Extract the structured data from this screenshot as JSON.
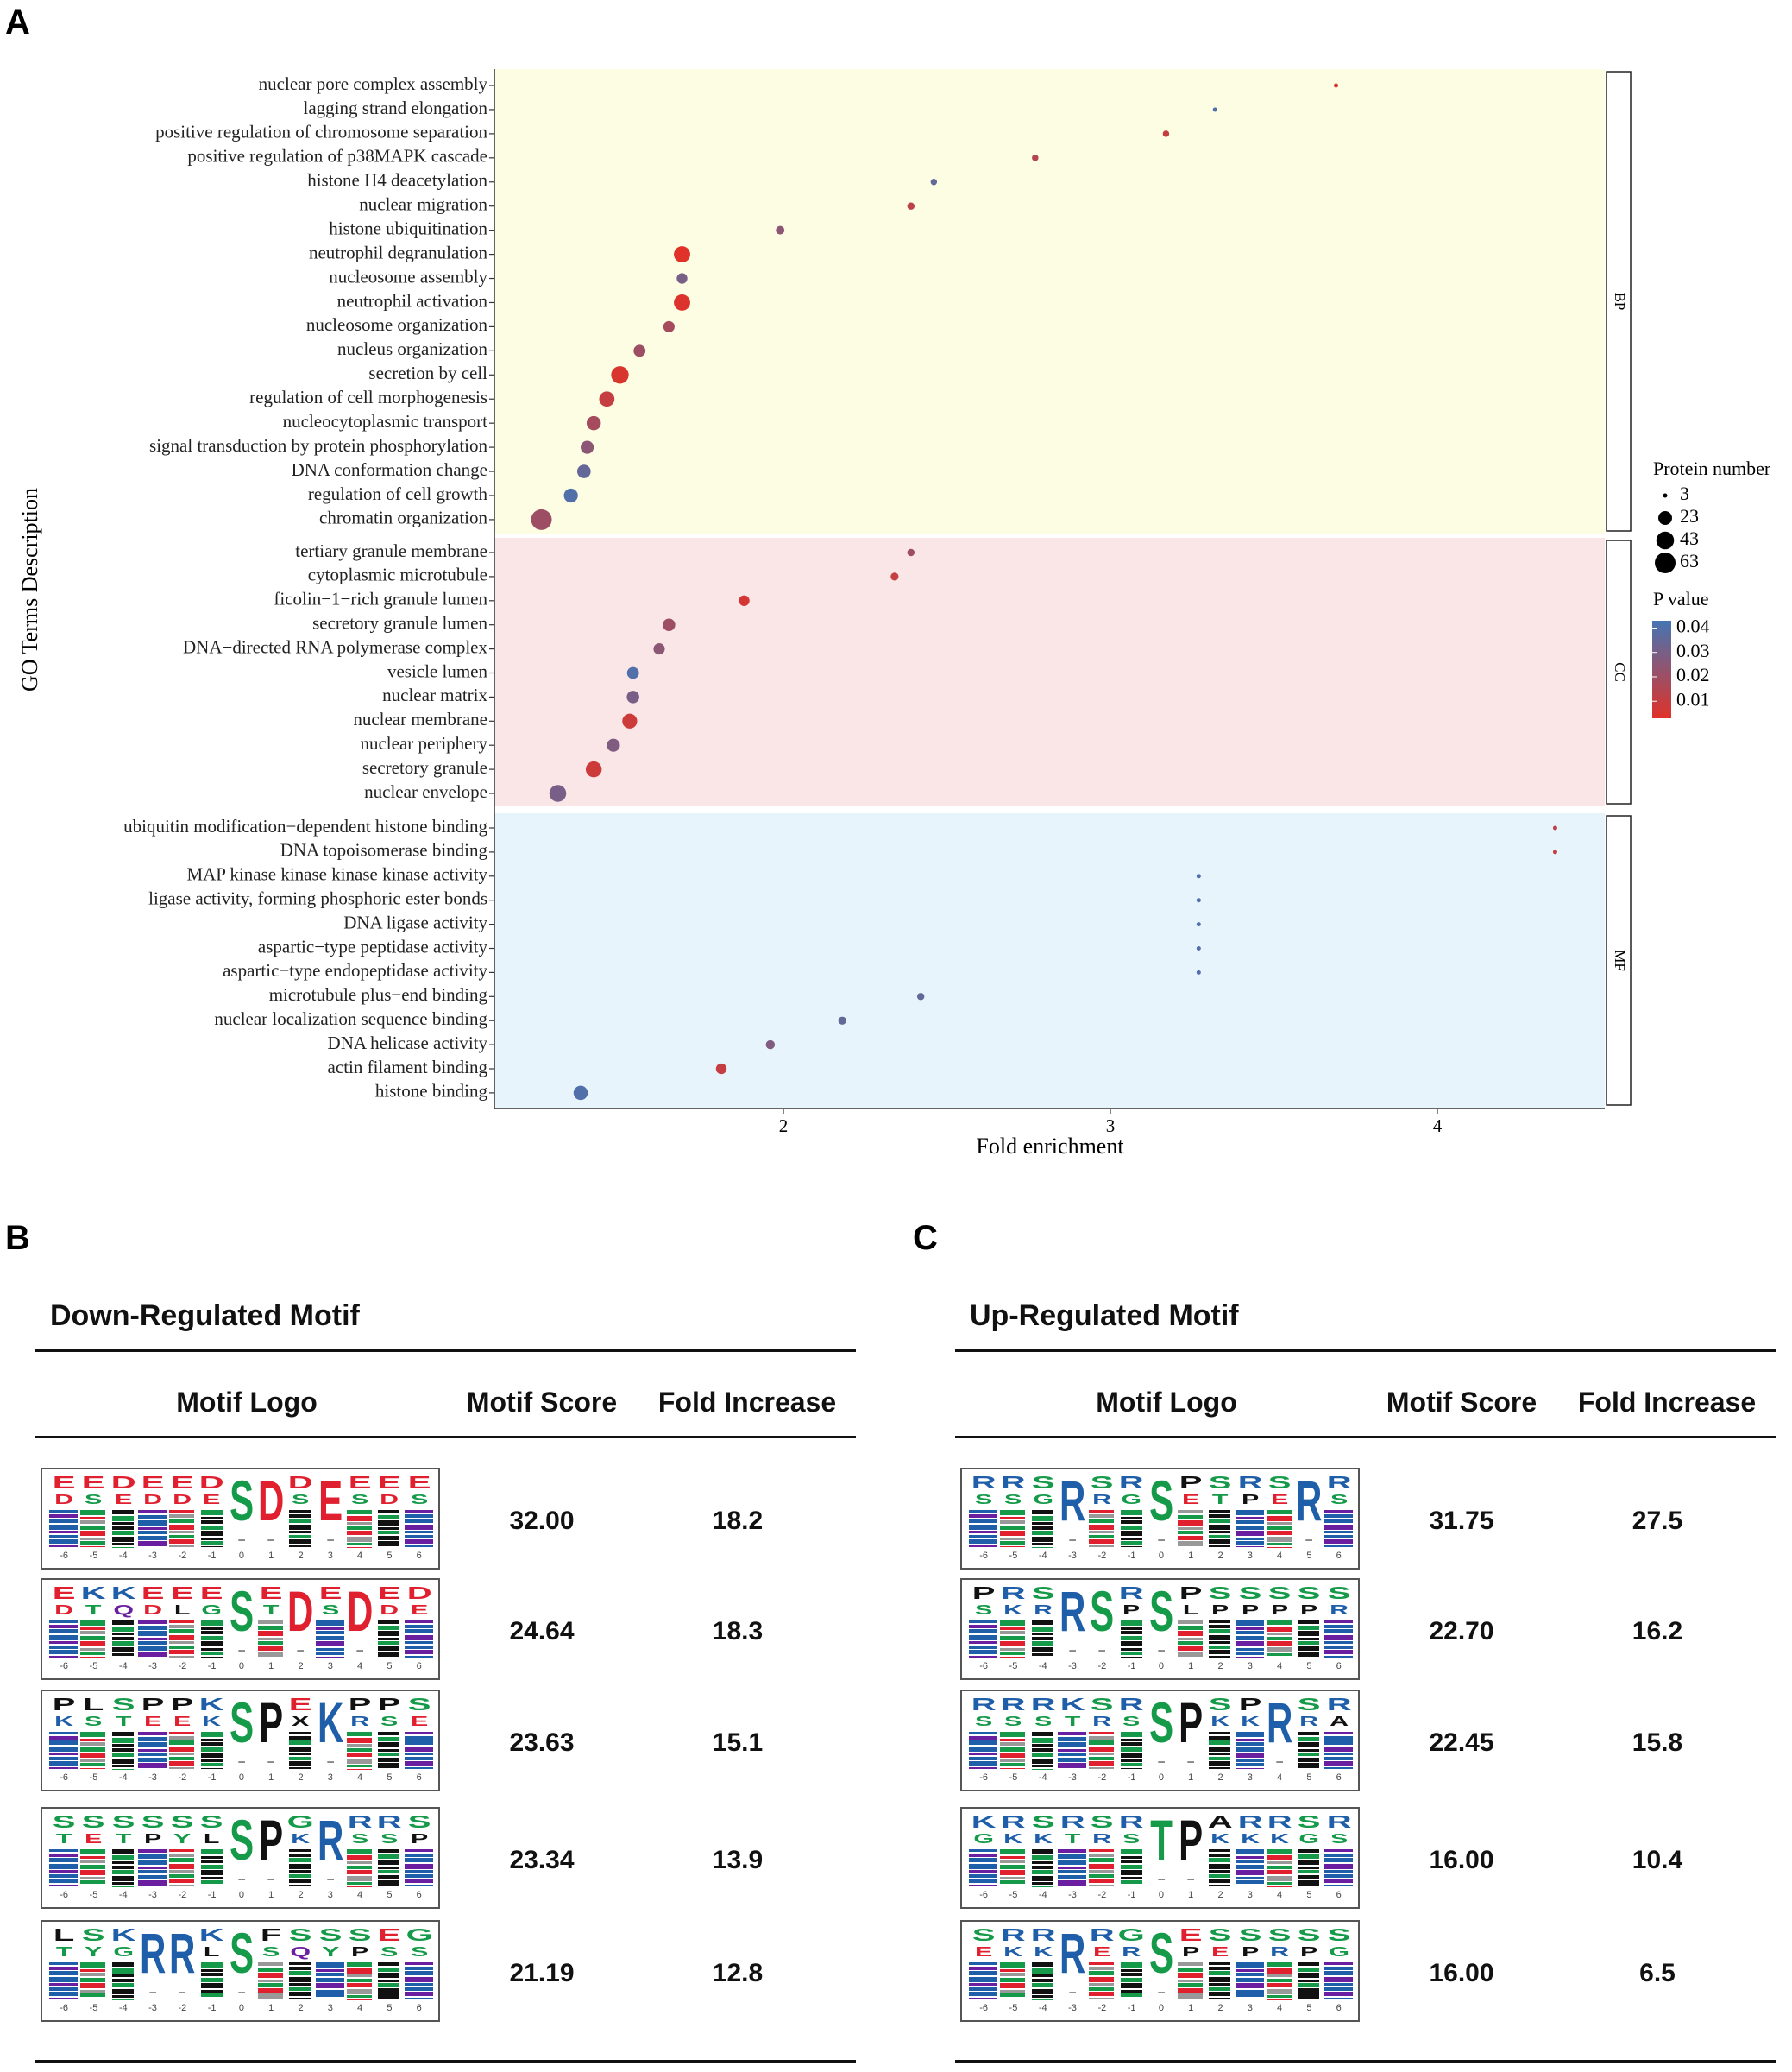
{
  "panels": {
    "a": "A",
    "b": "B",
    "c": "C"
  },
  "chart_data": {
    "type": "scatter",
    "title": "",
    "xlabel": "Fold enrichment",
    "ylabel": "GO Terms Description",
    "xlim": [
      1.116,
      4.51
    ],
    "xticks": [
      2,
      3,
      4
    ],
    "facet_colors": {
      "BP": "#fdfde4",
      "CC": "#fae5e7",
      "MF": "#e8f4fb"
    },
    "legend_size": {
      "title": "Protein number",
      "values": [
        3,
        23,
        43,
        63
      ]
    },
    "legend_color": {
      "title": "P value",
      "ticks": [
        "0.04",
        "0.03",
        "0.02",
        "0.01"
      ],
      "tick_values": [
        0.04,
        0.03,
        0.02,
        0.01
      ],
      "low_color": "#e03228",
      "high_color": "#4575b4",
      "range": [
        0.003,
        0.043
      ]
    },
    "facets": [
      {
        "name": "BP",
        "points": [
          [
            "nuclear pore complex assembly",
            3.69,
            3,
            0.005
          ],
          [
            "lagging strand elongation",
            3.32,
            3,
            0.04
          ],
          [
            "positive regulation of chromosome separation",
            3.17,
            4,
            0.01
          ],
          [
            "positive regulation of p38MAPK cascade",
            2.77,
            4,
            0.015
          ],
          [
            "histone H4 deacetylation",
            2.46,
            4,
            0.035
          ],
          [
            "nuclear migration",
            2.39,
            5,
            0.012
          ],
          [
            "histone ubiquitination",
            1.99,
            7,
            0.025
          ],
          [
            "neutrophil degranulation",
            1.69,
            35,
            0.003
          ],
          [
            "nucleosome assembly",
            1.69,
            12,
            0.03
          ],
          [
            "neutrophil activation",
            1.69,
            35,
            0.004
          ],
          [
            "nucleosome organization",
            1.65,
            14,
            0.018
          ],
          [
            "nucleus organization",
            1.56,
            16,
            0.02
          ],
          [
            "secretion by cell",
            1.5,
            42,
            0.005
          ],
          [
            "regulation of cell morphogenesis",
            1.46,
            30,
            0.01
          ],
          [
            "nucleocytoplasmic transport",
            1.42,
            25,
            0.018
          ],
          [
            "signal transduction by protein phosphorylation",
            1.4,
            20,
            0.025
          ],
          [
            "DNA conformation change",
            1.39,
            22,
            0.035
          ],
          [
            "regulation of cell growth",
            1.35,
            24,
            0.04
          ],
          [
            "chromatin organization",
            1.26,
            63,
            0.02
          ]
        ]
      },
      {
        "name": "CC",
        "points": [
          [
            "tertiary granule membrane",
            2.39,
            5,
            0.02
          ],
          [
            "cytoplasmic microtubule",
            2.34,
            6,
            0.01
          ],
          [
            "ficolin−1−rich granule lumen",
            1.88,
            12,
            0.006
          ],
          [
            "secretory granule lumen",
            1.65,
            18,
            0.02
          ],
          [
            "DNA−directed RNA polymerase complex",
            1.62,
            14,
            0.025
          ],
          [
            "vesicle lumen",
            1.54,
            16,
            0.04
          ],
          [
            "nuclear matrix",
            1.54,
            18,
            0.03
          ],
          [
            "nuclear membrane",
            1.53,
            28,
            0.008
          ],
          [
            "nuclear periphery",
            1.48,
            20,
            0.028
          ],
          [
            "secretory granule",
            1.42,
            33,
            0.008
          ],
          [
            "nuclear envelope",
            1.31,
            38,
            0.03
          ]
        ]
      },
      {
        "name": "MF",
        "points": [
          [
            "ubiquitin modification−dependent histone binding",
            4.36,
            3,
            0.012
          ],
          [
            "DNA topoisomerase binding",
            4.36,
            3,
            0.01
          ],
          [
            "MAP kinase kinase kinase kinase activity",
            3.27,
            3,
            0.04
          ],
          [
            "ligase activity, forming phosphoric ester bonds",
            3.27,
            3,
            0.04
          ],
          [
            "DNA ligase activity",
            3.27,
            3,
            0.04
          ],
          [
            "aspartic−type peptidase activity",
            3.27,
            3,
            0.04
          ],
          [
            "aspartic−type endopeptidase activity",
            3.27,
            3,
            0.04
          ],
          [
            "microtubule plus−end binding",
            2.42,
            5,
            0.035
          ],
          [
            "nuclear localization sequence binding",
            2.18,
            6,
            0.035
          ],
          [
            "DNA helicase activity",
            1.96,
            8,
            0.028
          ],
          [
            "actin filament binding",
            1.81,
            12,
            0.01
          ],
          [
            "histone binding",
            1.38,
            25,
            0.04
          ]
        ]
      }
    ]
  },
  "residue_colors": {
    "acidic": "#e0202f",
    "polar": "#149a48",
    "basic": "#1f5ea8",
    "hydrophobic": "#111111",
    "amide": "#6a1fa0"
  },
  "positions": [
    "-6",
    "-5",
    "-4",
    "-3",
    "-2",
    "-1",
    "0",
    "1",
    "2",
    "3",
    "4",
    "5",
    "6"
  ],
  "tables": {
    "down": {
      "title": "Down-Regulated Motif",
      "headers": {
        "logo": "Motif Logo",
        "score": "Motif Score",
        "fold": "Fold Increase"
      },
      "rows": [
        {
          "top": "EEDEEDSDDEEEE",
          "second": "DSEDDE--S-SDS",
          "full": [
            6,
            7,
            9
          ],
          "score": "32.00",
          "fold": "18.2"
        },
        {
          "top": "EKKEEESEDEDED",
          "second": "DTQDLG-T-S-DE",
          "full": [
            6,
            8,
            10
          ],
          "score": "24.64",
          "fold": "18.3"
        },
        {
          "top": "PLSPPKSPEKPPS",
          "second": "KSTEEK--X-RSE",
          "full": [
            6,
            7,
            9
          ],
          "score": "23.63",
          "fold": "15.1"
        },
        {
          "top": "SSSSSSSPGRRRS",
          "second": "TETPYL--K-SSP",
          "full": [
            6,
            7,
            9
          ],
          "score": "23.34",
          "fold": "13.9"
        },
        {
          "top": "LSKRRKSFSSSEG",
          "second": "TYG--L-SQYPSS",
          "full": [
            3,
            4,
            6
          ],
          "score": "21.19",
          "fold": "12.8"
        }
      ]
    },
    "up": {
      "title": "Up-Regulated Motif",
      "headers": {
        "logo": "Motif Logo",
        "score": "Motif Score",
        "fold": "Fold Increase"
      },
      "rows": [
        {
          "top": "RRSRSRSPSRSRR",
          "second": "SSG-RG-ETPE-S",
          "full": [
            3,
            6,
            11
          ],
          "score": "31.75",
          "fold": "27.5"
        },
        {
          "top": "PRSRSRSPSSSSS",
          "second": "SKR--P-LPPPPR",
          "full": [
            3,
            4,
            6
          ],
          "score": "22.70",
          "fold": "16.2"
        },
        {
          "top": "RRRKSRSPSPRSR",
          "second": "SSSTRS--KK-RA",
          "full": [
            6,
            7,
            10
          ],
          "score": "22.45",
          "fold": "15.8"
        },
        {
          "top": "KRSRSRTPARRSR",
          "second": "GKKTRS--KKKGS",
          "full": [
            6,
            7
          ],
          "score": "16.00",
          "fold": "10.4"
        },
        {
          "top": "SRRRRGSESSSSS",
          "second": "EKK-ER-PEPRPG",
          "full": [
            3,
            6
          ],
          "score": "16.00",
          "fold": "6.5"
        }
      ]
    }
  }
}
